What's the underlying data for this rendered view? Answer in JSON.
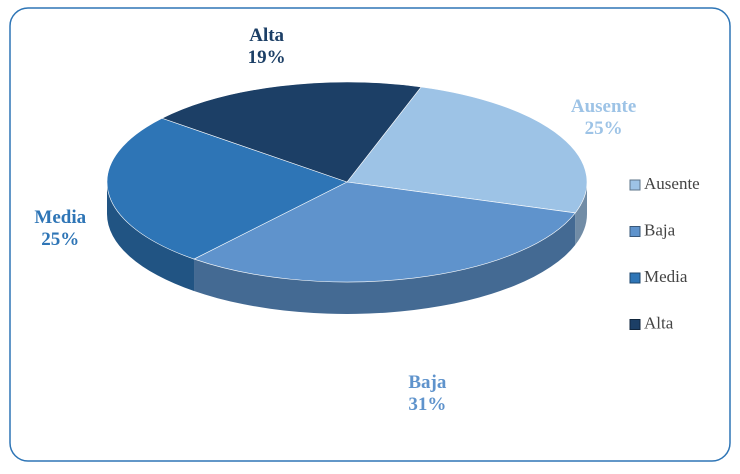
{
  "chart_data": {
    "type": "pie",
    "categories": [
      "Ausente",
      "Baja",
      "Media",
      "Alta"
    ],
    "values": [
      25,
      31,
      25,
      19
    ],
    "value_labels": [
      "25%",
      "31%",
      "25%",
      "19%"
    ],
    "colors": [
      "#9dc3e6",
      "#5f93cc",
      "#2e75b6",
      "#1c3f66"
    ],
    "legend": "right"
  }
}
